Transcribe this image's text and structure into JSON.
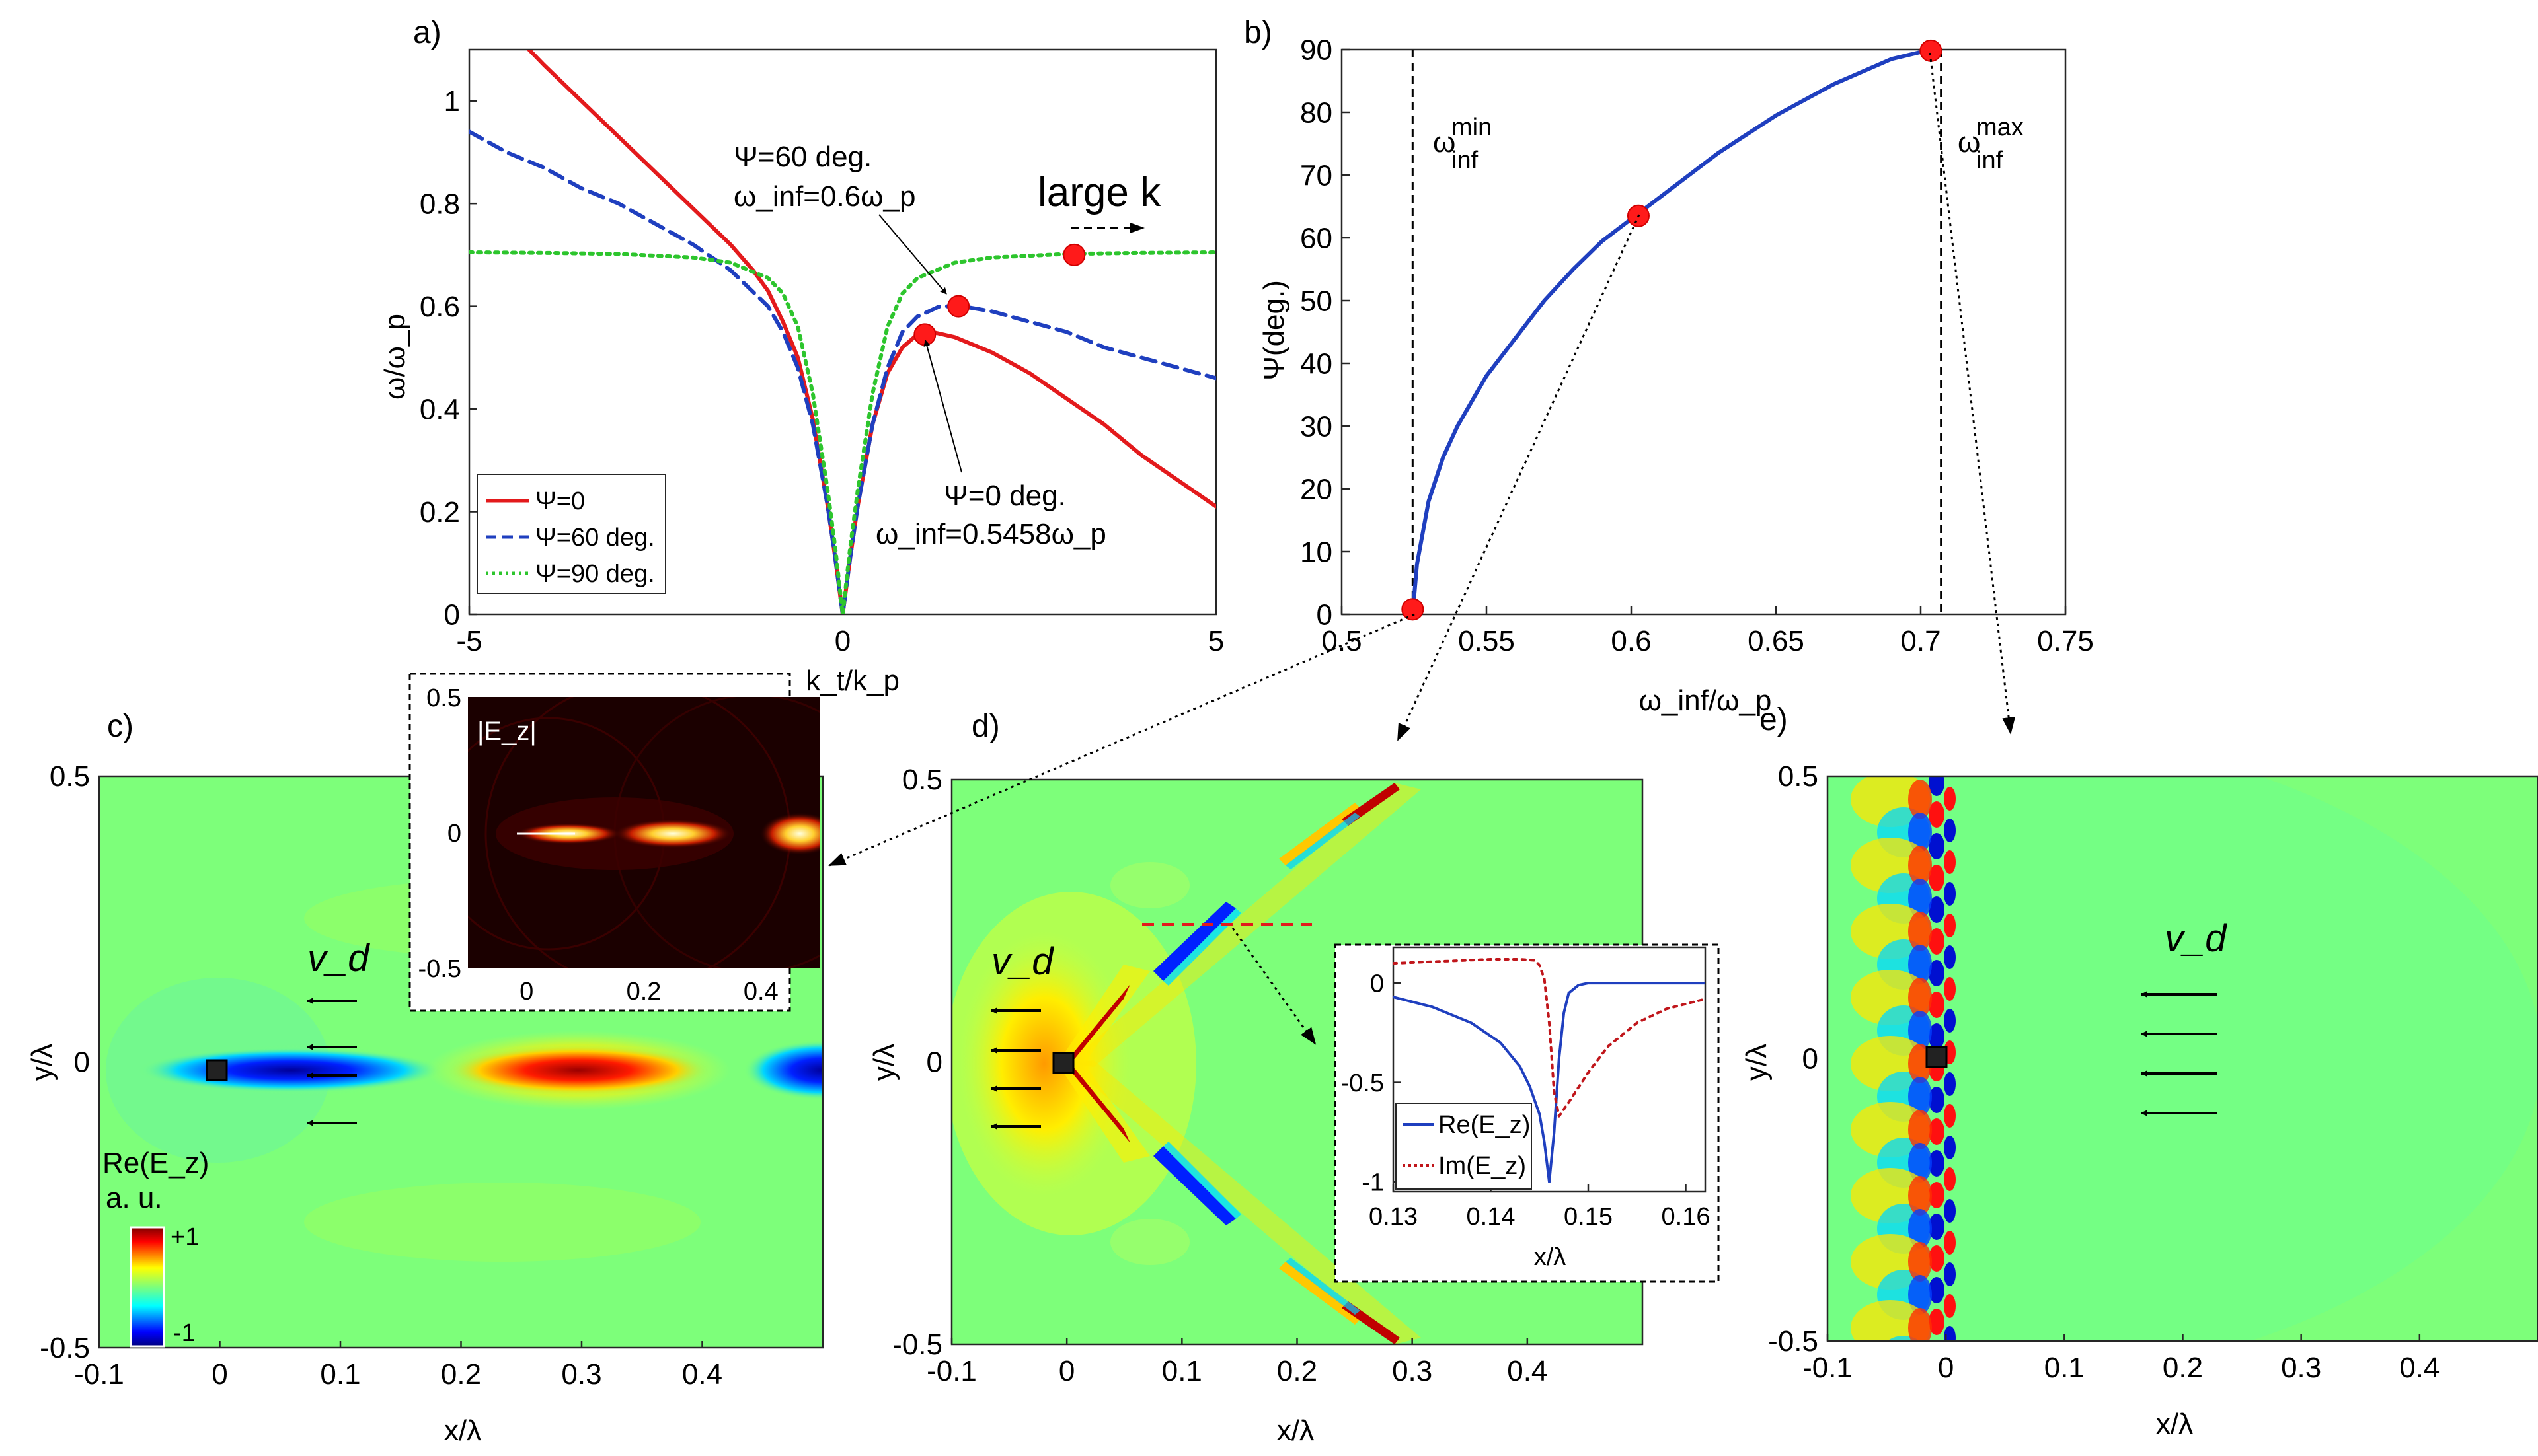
{
  "chart_data": [
    {
      "panel": "a)",
      "type": "line",
      "xlabel": "k_t/k_p",
      "ylabel": "ω/ω_p",
      "xlim": [
        -5,
        5
      ],
      "ylim": [
        0,
        1.1
      ],
      "xticks": [
        "-5",
        "0",
        "5"
      ],
      "yticks": [
        "0",
        "0.2",
        "0.4",
        "0.6",
        "0.8",
        "1"
      ],
      "legend_position": "bottom-left",
      "series": [
        {
          "name": "Ψ=0",
          "color": "#e31a1c",
          "dash": "solid",
          "points": [
            [
              -4.2,
              1.1
            ],
            [
              -4,
              1.07
            ],
            [
              -3.5,
              1.0
            ],
            [
              -3,
              0.93
            ],
            [
              -2.5,
              0.86
            ],
            [
              -2,
              0.79
            ],
            [
              -1.5,
              0.72
            ],
            [
              -1.2,
              0.67
            ],
            [
              -1,
              0.63
            ],
            [
              -0.8,
              0.57
            ],
            [
              -0.6,
              0.5
            ],
            [
              -0.4,
              0.38
            ],
            [
              -0.2,
              0.21
            ],
            [
              -0.1,
              0.11
            ],
            [
              0,
              0
            ],
            [
              0.1,
              0.11
            ],
            [
              0.2,
              0.21
            ],
            [
              0.4,
              0.37
            ],
            [
              0.6,
              0.47
            ],
            [
              0.8,
              0.52
            ],
            [
              1,
              0.545
            ],
            [
              1.2,
              0.55
            ],
            [
              1.5,
              0.54
            ],
            [
              2,
              0.51
            ],
            [
              2.5,
              0.47
            ],
            [
              3,
              0.42
            ],
            [
              3.5,
              0.37
            ],
            [
              4,
              0.31
            ],
            [
              4.5,
              0.26
            ],
            [
              5,
              0.21
            ]
          ]
        },
        {
          "name": "Ψ=60 deg.",
          "color": "#1f3fbf",
          "dash": "dashed",
          "points": [
            [
              -5,
              0.94
            ],
            [
              -4.5,
              0.9
            ],
            [
              -4,
              0.87
            ],
            [
              -3.5,
              0.83
            ],
            [
              -3,
              0.8
            ],
            [
              -2.5,
              0.76
            ],
            [
              -2,
              0.72
            ],
            [
              -1.5,
              0.67
            ],
            [
              -1,
              0.6
            ],
            [
              -0.8,
              0.55
            ],
            [
              -0.6,
              0.48
            ],
            [
              -0.4,
              0.37
            ],
            [
              -0.2,
              0.21
            ],
            [
              -0.1,
              0.11
            ],
            [
              0,
              0
            ],
            [
              0.1,
              0.11
            ],
            [
              0.2,
              0.21
            ],
            [
              0.4,
              0.37
            ],
            [
              0.6,
              0.48
            ],
            [
              0.8,
              0.55
            ],
            [
              1,
              0.58
            ],
            [
              1.3,
              0.6
            ],
            [
              1.6,
              0.6
            ],
            [
              2,
              0.59
            ],
            [
              2.5,
              0.57
            ],
            [
              3,
              0.55
            ],
            [
              3.5,
              0.52
            ],
            [
              4,
              0.5
            ],
            [
              4.5,
              0.48
            ],
            [
              5,
              0.46
            ]
          ]
        },
        {
          "name": "Ψ=90 deg.",
          "color": "#2dc52d",
          "dash": "dotted",
          "points": [
            [
              -5,
              0.705
            ],
            [
              -4,
              0.704
            ],
            [
              -3,
              0.702
            ],
            [
              -2,
              0.695
            ],
            [
              -1.5,
              0.685
            ],
            [
              -1,
              0.655
            ],
            [
              -0.8,
              0.625
            ],
            [
              -0.6,
              0.56
            ],
            [
              -0.4,
              0.43
            ],
            [
              -0.2,
              0.24
            ],
            [
              -0.1,
              0.13
            ],
            [
              0,
              0
            ],
            [
              0.1,
              0.13
            ],
            [
              0.2,
              0.24
            ],
            [
              0.4,
              0.43
            ],
            [
              0.6,
              0.56
            ],
            [
              0.8,
              0.625
            ],
            [
              1,
              0.655
            ],
            [
              1.5,
              0.685
            ],
            [
              2,
              0.695
            ],
            [
              3,
              0.702
            ],
            [
              4,
              0.704
            ],
            [
              5,
              0.705
            ]
          ]
        }
      ],
      "markers": [
        [
          1.1,
          0.545
        ],
        [
          1.55,
          0.6
        ],
        [
          3.1,
          0.7
        ]
      ],
      "annotations": [
        {
          "line1": "Ψ=60 deg.",
          "line2": "ω_inf=0.6ω_p"
        },
        {
          "line1": "Ψ=0 deg.",
          "line2": "ω_inf=0.5458ω_p"
        },
        {
          "text": "large k"
        }
      ]
    },
    {
      "panel": "b)",
      "type": "line",
      "xlabel": "ω_inf/ω_p",
      "ylabel": "Ψ(deg.)",
      "xlim": [
        0.5,
        0.75
      ],
      "ylim": [
        0,
        90
      ],
      "xticks": [
        "0.5",
        "0.55",
        "0.6",
        "0.65",
        "0.7",
        "0.75"
      ],
      "yticks": [
        "0",
        "10",
        "20",
        "30",
        "40",
        "50",
        "60",
        "70",
        "80",
        "90"
      ],
      "series": [
        {
          "name": "Ψ vs ω_inf",
          "color": "#1f3fbf",
          "points": [
            [
              0.5245,
              0
            ],
            [
              0.526,
              8
            ],
            [
              0.53,
              18
            ],
            [
              0.535,
              25
            ],
            [
              0.54,
              30
            ],
            [
              0.55,
              38
            ],
            [
              0.56,
              44
            ],
            [
              0.57,
              50
            ],
            [
              0.58,
              55
            ],
            [
              0.59,
              59.5
            ],
            [
              0.6,
              63
            ],
            [
              0.61,
              66.5
            ],
            [
              0.62,
              70
            ],
            [
              0.63,
              73.5
            ],
            [
              0.64,
              76.5
            ],
            [
              0.65,
              79.5
            ],
            [
              0.66,
              82
            ],
            [
              0.67,
              84.5
            ],
            [
              0.68,
              86.5
            ],
            [
              0.69,
              88.5
            ],
            [
              0.7,
              89.6
            ],
            [
              0.7035,
              90
            ]
          ]
        }
      ],
      "markers": [
        [
          0.5245,
          0.8
        ],
        [
          0.6025,
          63.5
        ],
        [
          0.7035,
          89.8
        ]
      ],
      "vlines": [
        0.5245,
        0.707
      ],
      "vline_labels": [
        {
          "base": "ω",
          "sup": "min",
          "sub": "inf"
        },
        {
          "base": "ω",
          "sup": "max",
          "sub": "inf"
        }
      ]
    },
    {
      "panel": "c)",
      "type": "heatmap",
      "xlabel": "x/λ",
      "ylabel": "y/λ",
      "xlim": [
        -0.1,
        0.5
      ],
      "ylim": [
        -0.5,
        0.5
      ],
      "xticks": [
        "-0.1",
        "0",
        "0.1",
        "0.2",
        "0.3",
        "0.4"
      ],
      "yticks": [
        "-0.5",
        "0",
        "0.5"
      ],
      "velocity_label": "v_d",
      "colorbar": {
        "title": "Re(E_z)",
        "unit": "a. u.",
        "max_label": "+1",
        "min_label": "-1"
      },
      "inset": {
        "label": "|E_z|",
        "xticks": [
          "0",
          "0.2",
          "0.4"
        ],
        "yticks": [
          "0.5",
          "0",
          "-0.5"
        ]
      }
    },
    {
      "panel": "d)",
      "type": "heatmap",
      "xlabel": "x/λ",
      "ylabel": "y/λ",
      "xlim": [
        -0.1,
        0.5
      ],
      "ylim": [
        -0.5,
        0.5
      ],
      "xticks": [
        "-0.1",
        "0",
        "0.1",
        "0.2",
        "0.3",
        "0.4"
      ],
      "yticks": [
        "-0.5",
        "0",
        "0.5"
      ],
      "velocity_label": "v_d",
      "inset": {
        "type": "line",
        "xlabel": "x/λ",
        "xticks": [
          "0.13",
          "0.14",
          "0.15",
          "0.16"
        ],
        "yticks": [
          "0",
          "-0.5",
          "-1"
        ],
        "xlim": [
          0.13,
          0.162
        ],
        "ylim": [
          -1.05,
          0.18
        ],
        "series": [
          {
            "name": "Re(E_z)",
            "color": "#1f3fbf",
            "points": [
              [
                0.13,
                -0.07
              ],
              [
                0.134,
                -0.12
              ],
              [
                0.138,
                -0.2
              ],
              [
                0.141,
                -0.3
              ],
              [
                0.143,
                -0.42
              ],
              [
                0.144,
                -0.52
              ],
              [
                0.145,
                -0.66
              ],
              [
                0.1455,
                -0.8
              ],
              [
                0.146,
                -1.0
              ],
              [
                0.1465,
                -0.75
              ],
              [
                0.147,
                -0.38
              ],
              [
                0.1475,
                -0.15
              ],
              [
                0.148,
                -0.05
              ],
              [
                0.149,
                -0.01
              ],
              [
                0.15,
                0
              ],
              [
                0.155,
                0
              ],
              [
                0.162,
                0
              ]
            ]
          },
          {
            "name": "Im(E_z)",
            "color": "#c0161b",
            "dash": "dotted",
            "points": [
              [
                0.13,
                0.1
              ],
              [
                0.135,
                0.11
              ],
              [
                0.14,
                0.12
              ],
              [
                0.143,
                0.12
              ],
              [
                0.1445,
                0.115
              ],
              [
                0.145,
                0.09
              ],
              [
                0.1455,
                0.02
              ],
              [
                0.146,
                -0.2
              ],
              [
                0.1465,
                -0.55
              ],
              [
                0.147,
                -0.67
              ],
              [
                0.148,
                -0.6
              ],
              [
                0.15,
                -0.45
              ],
              [
                0.152,
                -0.32
              ],
              [
                0.155,
                -0.2
              ],
              [
                0.158,
                -0.13
              ],
              [
                0.162,
                -0.08
              ]
            ]
          }
        ]
      }
    },
    {
      "panel": "e)",
      "type": "heatmap",
      "xlabel": "x/λ",
      "ylabel": "y/λ",
      "xlim": [
        -0.1,
        0.5
      ],
      "ylim": [
        -0.5,
        0.5
      ],
      "xticks": [
        "-0.1",
        "0",
        "0.1",
        "0.2",
        "0.3",
        "0.4"
      ],
      "yticks": [
        "-0.5",
        "0",
        "0.5"
      ],
      "velocity_label": "v_d"
    }
  ]
}
